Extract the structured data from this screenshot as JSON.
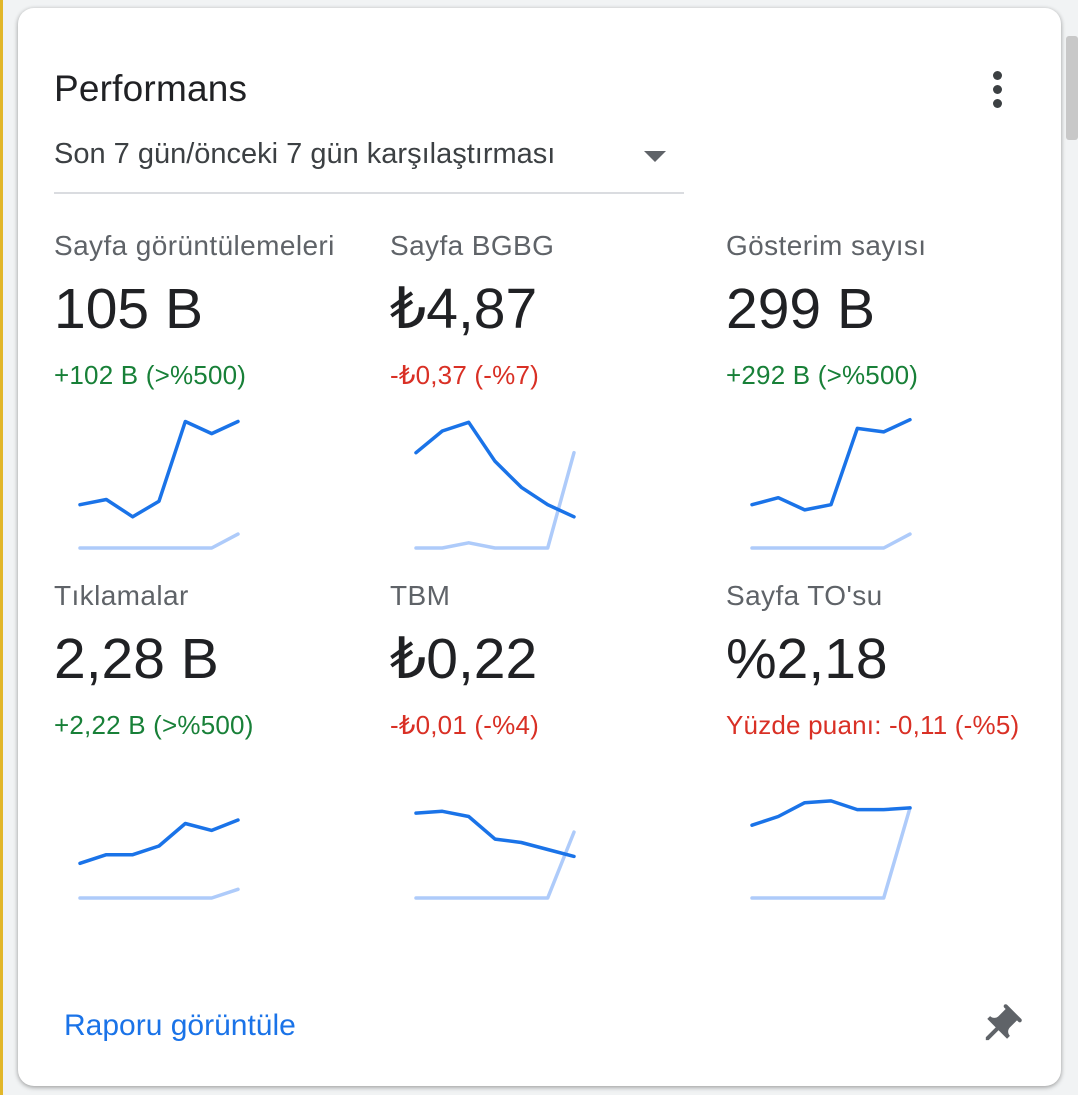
{
  "card": {
    "title": "Performans",
    "period_selector": {
      "selected": "Son 7 gün/önceki 7 gün karşılaştırması"
    },
    "report_link": "Raporu görüntüle"
  },
  "colors": {
    "current_line": "#1a73e8",
    "previous_line": "#aecbfa",
    "positive": "#188038",
    "negative": "#d93025",
    "link": "#1a73e8"
  },
  "icons": {
    "more": "more-vertical-icon",
    "dropdown": "dropdown-arrow-icon",
    "pin": "pin-icon"
  },
  "metrics": [
    {
      "label": "Sayfa görüntülemeleri",
      "value": "105 B",
      "change": "+102 B (>%500)",
      "trend": "positive",
      "current": [
        5,
        5.6,
        3.6,
        5.4,
        14.6,
        13.2,
        14.6
      ],
      "previous": [
        0,
        0,
        0,
        0,
        0,
        0,
        1.6
      ]
    },
    {
      "label": "Sayfa BGBG",
      "value": "₺4,87",
      "change": "-₺0,37 (-%7)",
      "trend": "negative",
      "current": [
        11,
        13.5,
        14.5,
        10,
        7,
        5,
        3.6
      ],
      "previous": [
        0,
        0,
        0.6,
        0,
        0,
        0,
        11
      ]
    },
    {
      "label": "Gösterim sayısı",
      "value": "299 B",
      "change": "+292 B (>%500)",
      "trend": "positive",
      "current": [
        5,
        5.8,
        4.4,
        5,
        13.8,
        13.4,
        14.8
      ],
      "previous": [
        0,
        0,
        0,
        0,
        0,
        0,
        1.6
      ]
    },
    {
      "label": "Tıklamalar",
      "value": "2,28 B",
      "change": "+2,22 B (>%500)",
      "trend": "positive",
      "current": [
        4,
        5,
        5,
        6,
        8.6,
        7.8,
        9
      ],
      "previous": [
        0,
        0,
        0,
        0,
        0,
        0,
        1
      ]
    },
    {
      "label": "TBM",
      "value": "₺0,22",
      "change": "-₺0,01 (-%4)",
      "trend": "negative",
      "current": [
        9.8,
        10,
        9.4,
        6.8,
        6.4,
        5.6,
        4.8
      ],
      "previous": [
        0,
        0,
        0,
        0,
        0,
        0,
        7.6
      ]
    },
    {
      "label": "Sayfa TO'su",
      "value": "%2,18",
      "change": "Yüzde puanı: -0,11 (-%5)",
      "trend": "negative",
      "current": [
        8.4,
        9.4,
        11,
        11.2,
        10.2,
        10.2,
        10.4
      ],
      "previous": [
        0,
        0,
        0,
        0,
        0,
        0,
        10.4
      ]
    }
  ]
}
